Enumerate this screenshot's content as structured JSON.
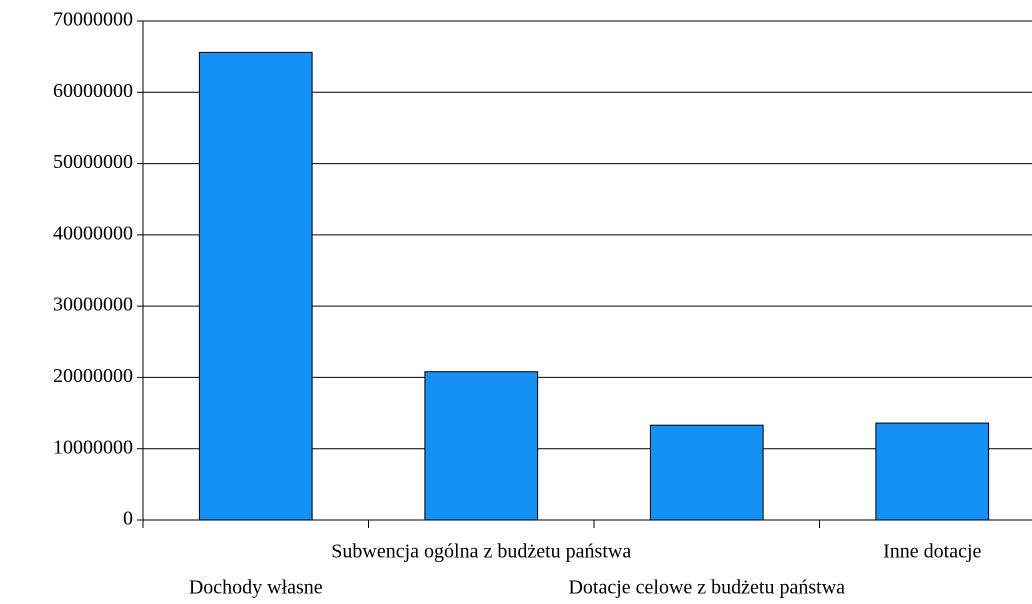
{
  "chart_data": {
    "type": "bar",
    "categories": [
      "Dochody własne",
      "Subwencja ogólna z budżetu państwa",
      "Dotacje celowe z budżetu państwa",
      "Inne dotacje"
    ],
    "values": [
      65600000,
      20800000,
      13300000,
      13600000
    ],
    "color": "#1591f5",
    "ylim": [
      0,
      70000000
    ],
    "yticks": [
      0,
      10000000,
      20000000,
      30000000,
      40000000,
      50000000,
      60000000,
      70000000
    ],
    "grid": true
  }
}
